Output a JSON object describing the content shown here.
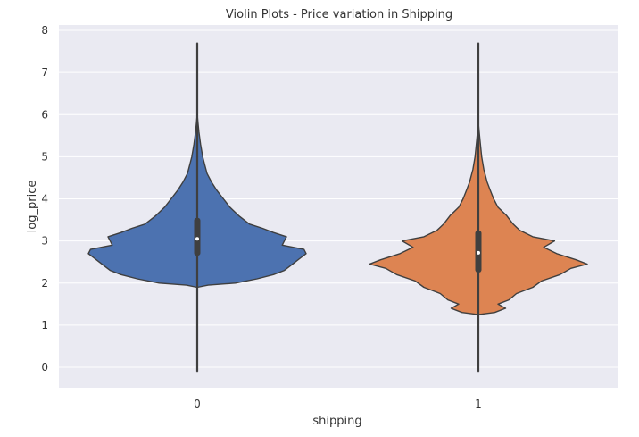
{
  "chart_data": {
    "type": "violin",
    "title": "Violin Plots - Price variation in Shipping",
    "xlabel": "shipping",
    "ylabel": "log_price",
    "categories": [
      "0",
      "1"
    ],
    "ylim": [
      -0.5,
      8.05
    ],
    "yticks": [
      "0",
      "1",
      "2",
      "3",
      "4",
      "5",
      "6",
      "7",
      "8"
    ],
    "grid": true,
    "background": "#EAEAF2",
    "series": [
      {
        "category": "0",
        "color": "#4C72B0",
        "range": [
          -0.1,
          7.7
        ],
        "median": 3.05,
        "q1": 2.65,
        "q3": 3.55,
        "density_profile": [
          [
            -0.1,
            0.0
          ],
          [
            1.9,
            0.0
          ],
          [
            1.95,
            0.1
          ],
          [
            2.0,
            0.35
          ],
          [
            2.1,
            0.55
          ],
          [
            2.2,
            0.7
          ],
          [
            2.3,
            0.8
          ],
          [
            2.4,
            0.85
          ],
          [
            2.5,
            0.9
          ],
          [
            2.6,
            0.95
          ],
          [
            2.7,
            1.0
          ],
          [
            2.8,
            0.98
          ],
          [
            2.9,
            0.78
          ],
          [
            3.0,
            0.8
          ],
          [
            3.1,
            0.82
          ],
          [
            3.2,
            0.7
          ],
          [
            3.3,
            0.6
          ],
          [
            3.4,
            0.48
          ],
          [
            3.6,
            0.38
          ],
          [
            3.8,
            0.3
          ],
          [
            4.0,
            0.24
          ],
          [
            4.2,
            0.18
          ],
          [
            4.4,
            0.13
          ],
          [
            4.6,
            0.09
          ],
          [
            4.8,
            0.07
          ],
          [
            5.0,
            0.05
          ],
          [
            5.3,
            0.03
          ],
          [
            5.6,
            0.015
          ],
          [
            6.0,
            0.0
          ],
          [
            7.7,
            0.0
          ]
        ]
      },
      {
        "category": "1",
        "color": "#DD8452",
        "range": [
          -0.1,
          7.7
        ],
        "median": 2.72,
        "q1": 2.25,
        "q3": 3.25,
        "density_profile": [
          [
            -0.1,
            0.0
          ],
          [
            1.25,
            0.0
          ],
          [
            1.3,
            0.15
          ],
          [
            1.4,
            0.25
          ],
          [
            1.5,
            0.18
          ],
          [
            1.6,
            0.28
          ],
          [
            1.75,
            0.35
          ],
          [
            1.9,
            0.5
          ],
          [
            2.05,
            0.58
          ],
          [
            2.2,
            0.75
          ],
          [
            2.35,
            0.85
          ],
          [
            2.45,
            1.0
          ],
          [
            2.55,
            0.9
          ],
          [
            2.7,
            0.72
          ],
          [
            2.85,
            0.6
          ],
          [
            3.0,
            0.7
          ],
          [
            3.1,
            0.5
          ],
          [
            3.25,
            0.38
          ],
          [
            3.4,
            0.32
          ],
          [
            3.6,
            0.26
          ],
          [
            3.8,
            0.18
          ],
          [
            4.0,
            0.14
          ],
          [
            4.2,
            0.11
          ],
          [
            4.4,
            0.08
          ],
          [
            4.7,
            0.05
          ],
          [
            5.0,
            0.03
          ],
          [
            5.4,
            0.015
          ],
          [
            5.8,
            0.0
          ],
          [
            7.7,
            0.0
          ]
        ]
      }
    ]
  }
}
